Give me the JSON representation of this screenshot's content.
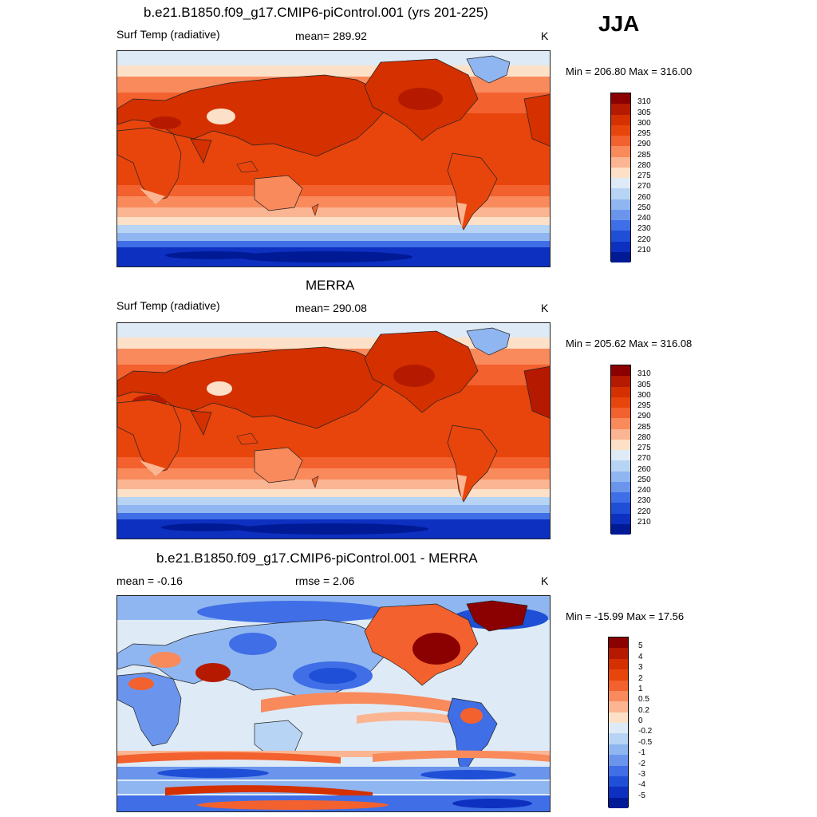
{
  "season": "JJA",
  "panels": [
    {
      "title": "b.e21.B1850.f09_g17.CMIP6-piControl.001 (yrs 201-225)",
      "left_label": "Surf Temp (radiative)",
      "center_label": "mean= 289.92",
      "units": "K",
      "minmax": "Min = 206.80 Max = 316.00"
    },
    {
      "title": "MERRA",
      "left_label": "Surf Temp (radiative)",
      "center_label": "mean= 290.08",
      "units": "K",
      "minmax": "Min = 205.62 Max = 316.08"
    },
    {
      "title": "b.e21.B1850.f09_g17.CMIP6-piControl.001 - MERRA",
      "left_label": "mean =  -0.16",
      "center_label": "rmse =   2.06",
      "units": "K",
      "minmax": "Min = -15.99 Max =  17.56"
    }
  ],
  "colorbars": {
    "abs_labels": [
      "310",
      "305",
      "300",
      "295",
      "290",
      "285",
      "280",
      "275",
      "270",
      "260",
      "250",
      "240",
      "230",
      "220",
      "210"
    ],
    "abs_colors": [
      "#8b0000",
      "#b51a00",
      "#d43000",
      "#e8450c",
      "#f2612e",
      "#f88a5c",
      "#fbb592",
      "#fde0c8",
      "#deebf7",
      "#b8d4f4",
      "#8fb6f0",
      "#6b95ec",
      "#3f6ee6",
      "#1f4fd6",
      "#0d30c0",
      "#001a96"
    ],
    "diff_labels": [
      "5",
      "4",
      "3",
      "2",
      "1",
      "0.5",
      "0.2",
      "0",
      "-0.2",
      "-0.5",
      "-1",
      "-2",
      "-3",
      "-4",
      "-5"
    ],
    "diff_colors": [
      "#8b0000",
      "#b51a00",
      "#d43000",
      "#e8450c",
      "#f2612e",
      "#f88a5c",
      "#fbb592",
      "#fde0c8",
      "#deebf7",
      "#b8d4f4",
      "#8fb6f0",
      "#6b95ec",
      "#3f6ee6",
      "#1f4fd6",
      "#0d30c0",
      "#001a96"
    ]
  }
}
